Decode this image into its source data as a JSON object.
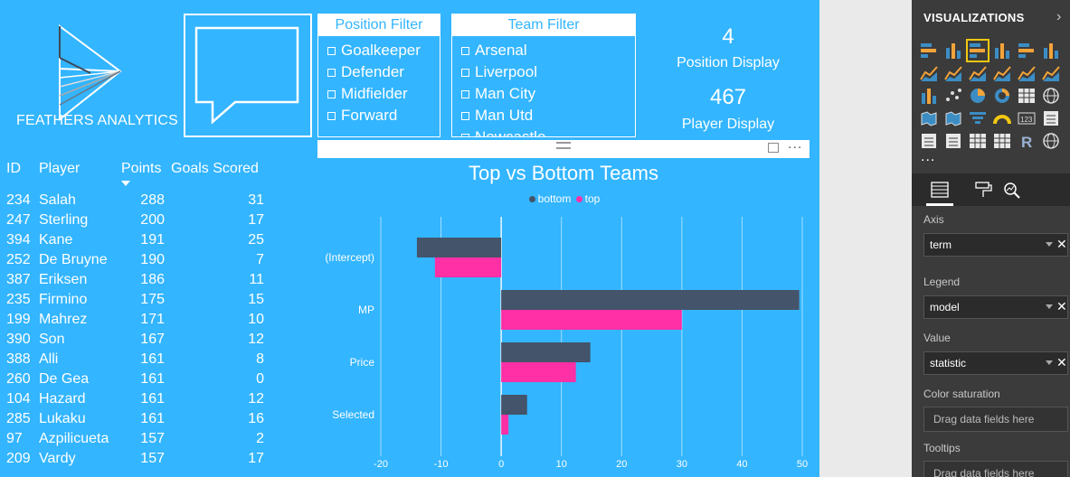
{
  "logo": {
    "text": "FEATHERS ANALYTICS"
  },
  "position_filter": {
    "title": "Position Filter",
    "items": [
      "Goalkeeper",
      "Defender",
      "Midfielder",
      "Forward"
    ]
  },
  "team_filter": {
    "title": "Team Filter",
    "items": [
      "Arsenal",
      "Liverpool",
      "Man City",
      "Man Utd",
      "Newcastle"
    ]
  },
  "cards": {
    "position": {
      "value": "4",
      "label": "Position Display"
    },
    "player": {
      "value": "467",
      "label": "Player Display"
    }
  },
  "table": {
    "headers": {
      "id": "ID",
      "player": "Player",
      "points": "Points",
      "goals": "Goals Scored"
    },
    "rows": [
      {
        "id": "234",
        "player": "Salah",
        "points": "288",
        "goals": "31"
      },
      {
        "id": "247",
        "player": "Sterling",
        "points": "200",
        "goals": "17"
      },
      {
        "id": "394",
        "player": "Kane",
        "points": "191",
        "goals": "25"
      },
      {
        "id": "252",
        "player": "De Bruyne",
        "points": "190",
        "goals": "7"
      },
      {
        "id": "387",
        "player": "Eriksen",
        "points": "186",
        "goals": "11"
      },
      {
        "id": "235",
        "player": "Firmino",
        "points": "175",
        "goals": "15"
      },
      {
        "id": "199",
        "player": "Mahrez",
        "points": "171",
        "goals": "10"
      },
      {
        "id": "390",
        "player": "Son",
        "points": "167",
        "goals": "12"
      },
      {
        "id": "388",
        "player": "Alli",
        "points": "161",
        "goals": "8"
      },
      {
        "id": "260",
        "player": "De Gea",
        "points": "161",
        "goals": "0"
      },
      {
        "id": "104",
        "player": "Hazard",
        "points": "161",
        "goals": "12"
      },
      {
        "id": "285",
        "player": "Lukaku",
        "points": "161",
        "goals": "16"
      },
      {
        "id": "97",
        "player": "Azpilicueta",
        "points": "157",
        "goals": "2"
      },
      {
        "id": "209",
        "player": "Vardy",
        "points": "157",
        "goals": "17"
      }
    ]
  },
  "chart_data": {
    "type": "bar",
    "orientation": "horizontal",
    "title": "Top vs Bottom Teams",
    "categories": [
      "(Intercept)",
      "MP",
      "Price",
      "Selected"
    ],
    "series": [
      {
        "name": "bottom",
        "color": "#44546a",
        "values": [
          -14,
          49.5,
          14.8,
          4.3
        ]
      },
      {
        "name": "top",
        "color": "#ff2fa5",
        "values": [
          -11,
          30,
          12.4,
          1.2
        ]
      }
    ],
    "xlim": [
      -20,
      50
    ],
    "xticks": [
      -20,
      -10,
      0,
      10,
      20,
      30,
      40,
      50
    ],
    "legend_position": "top-center",
    "grid": true
  },
  "visualizations": {
    "title": "VISUALIZATIONS",
    "more": "...",
    "wells": {
      "axis": {
        "label": "Axis",
        "value": "term"
      },
      "legend": {
        "label": "Legend",
        "value": "model"
      },
      "value": {
        "label": "Value",
        "value": "statistic"
      },
      "color_saturation": {
        "label": "Color saturation",
        "hint": "Drag data fields here"
      },
      "tooltips": {
        "label": "Tooltips",
        "hint": "Drag data fields here"
      }
    }
  }
}
